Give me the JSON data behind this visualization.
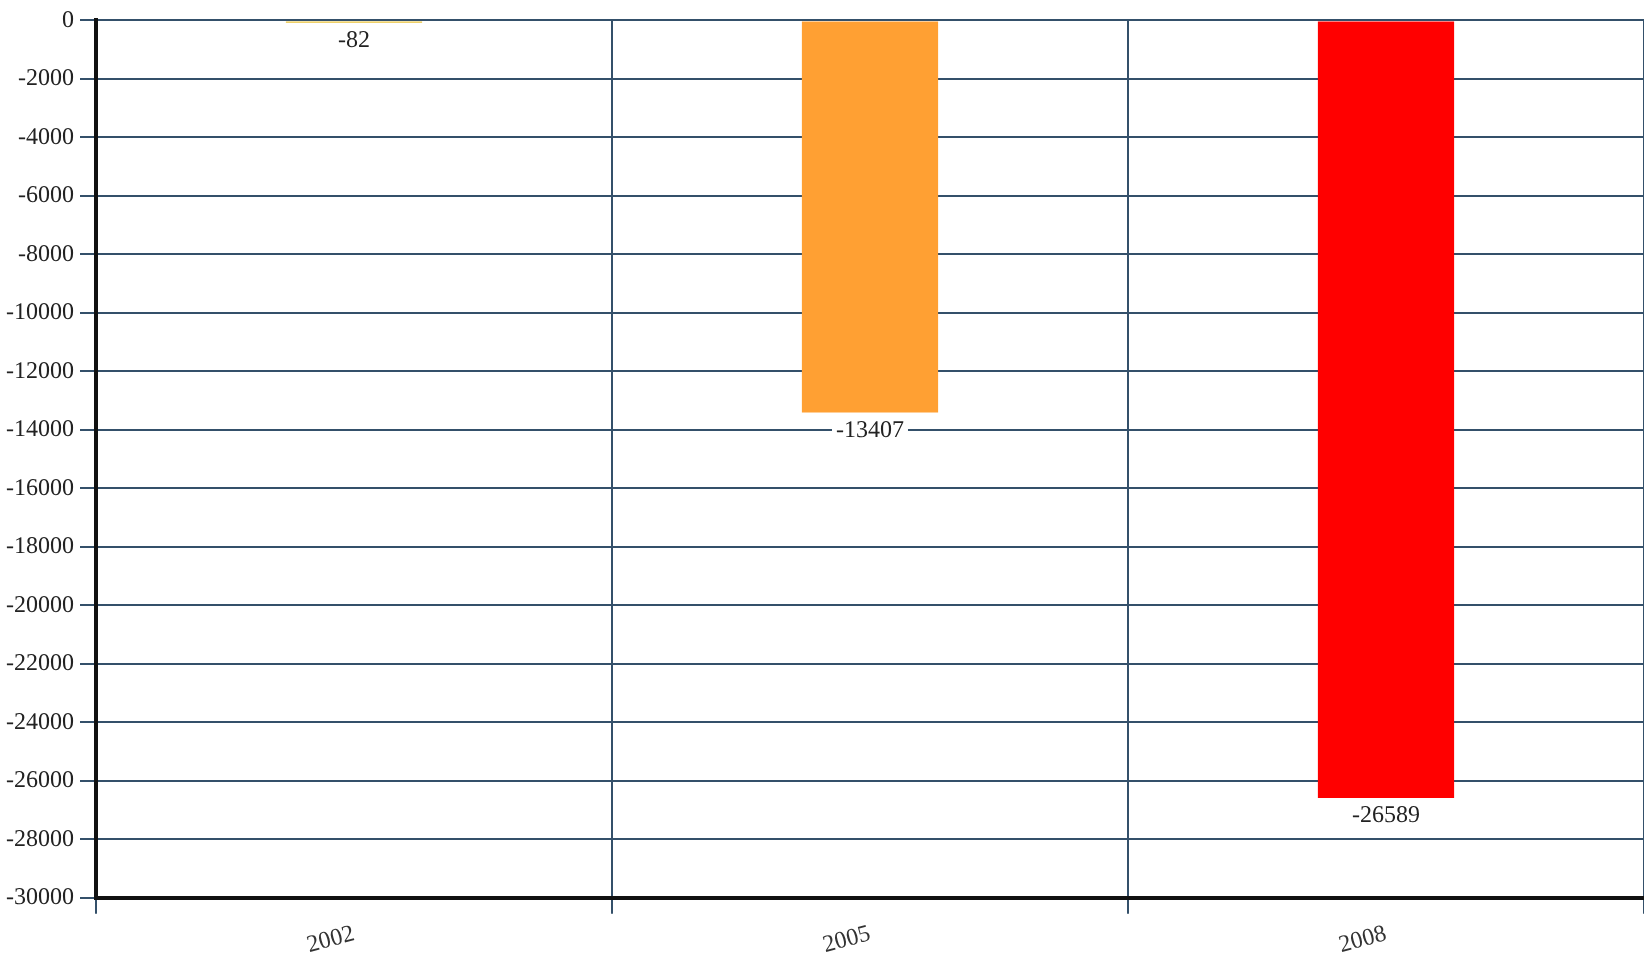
{
  "chart_data": {
    "type": "bar",
    "categories": [
      "2002",
      "2005",
      "2008"
    ],
    "values": [
      -82,
      -13407,
      -26589
    ],
    "colors": [
      "#e8c23a",
      "#ffa033",
      "#ff0000"
    ],
    "ylim": [
      -30000,
      0
    ],
    "yticks": [
      -30000,
      -28000,
      -26000,
      -24000,
      -22000,
      -20000,
      -18000,
      -16000,
      -14000,
      -12000,
      -10000,
      -8000,
      -6000,
      -4000,
      -2000,
      0
    ],
    "grid": true,
    "data_labels": true
  }
}
